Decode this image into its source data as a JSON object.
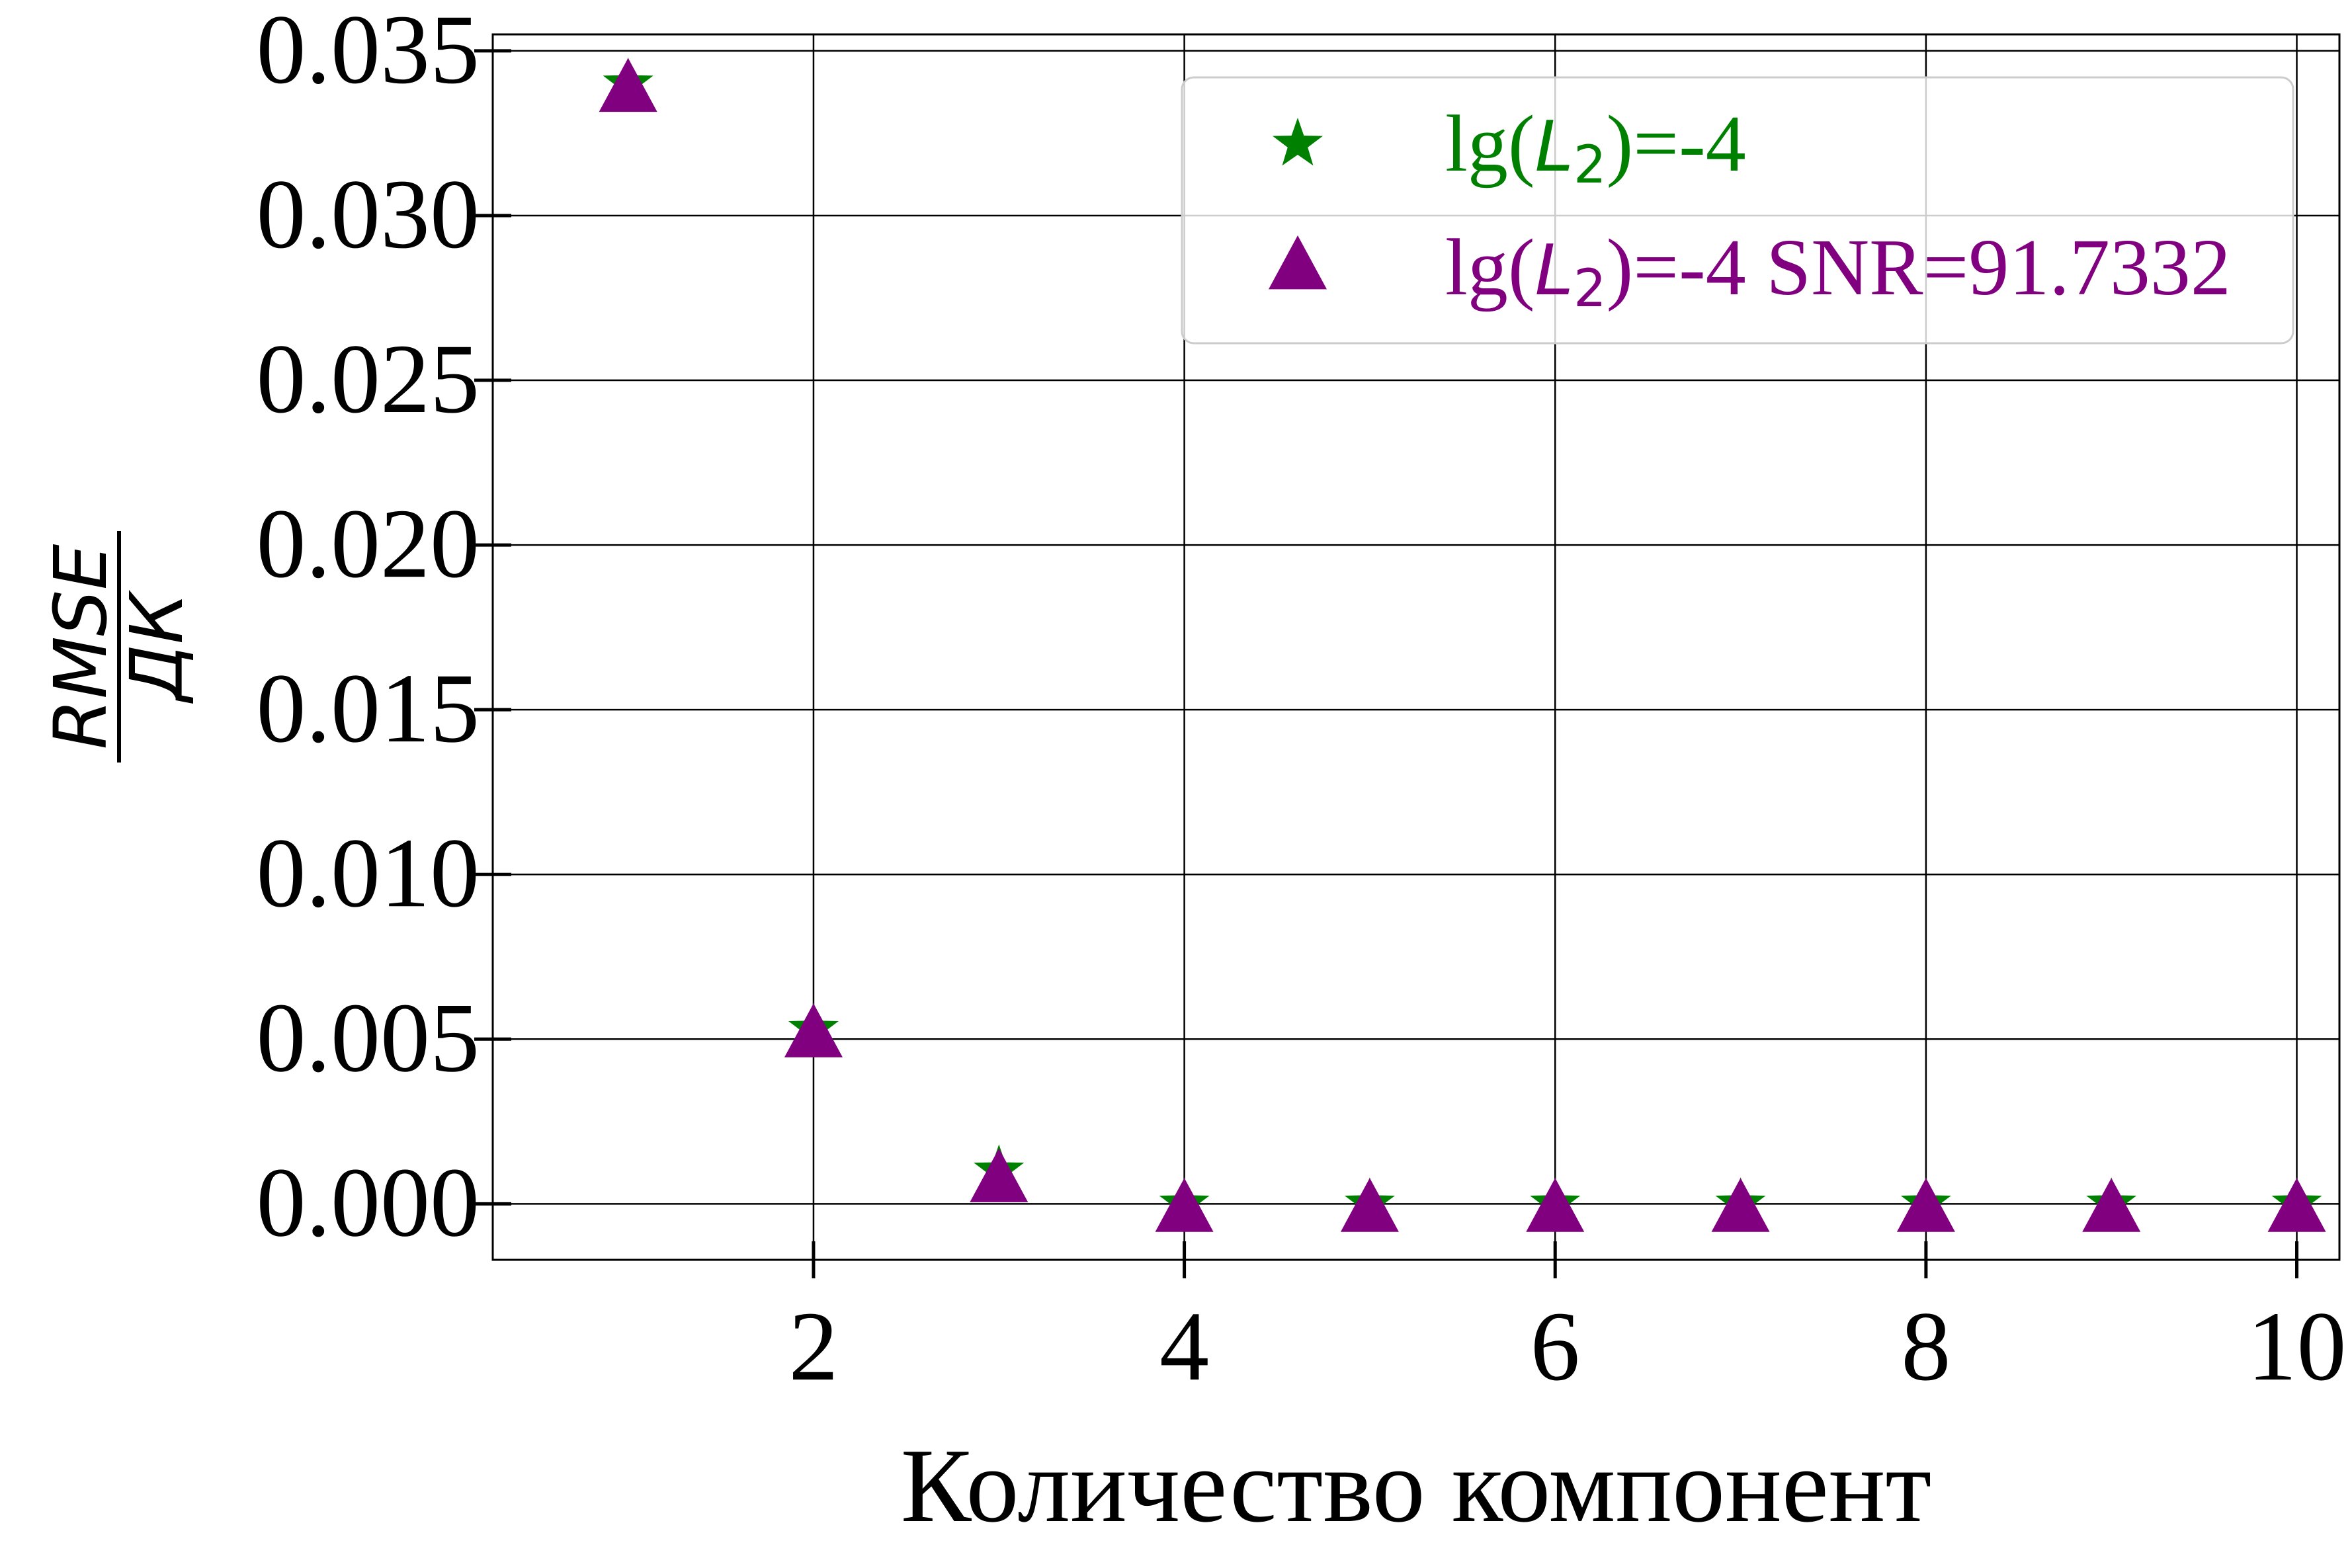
{
  "chart_data": {
    "type": "scatter",
    "title": "",
    "xlabel": "Количество компонент",
    "ylabel": {
      "numerator": "RMSE",
      "denominator": "ДК"
    },
    "xlim": [
      0.27,
      10.23
    ],
    "ylim": [
      -0.0017,
      0.0355
    ],
    "xticks": [
      2,
      4,
      6,
      8,
      10
    ],
    "xtick_labels": [
      "2",
      "4",
      "6",
      "8",
      "10"
    ],
    "yticks": [
      0.0,
      0.005,
      0.01,
      0.015,
      0.02,
      0.025,
      0.03,
      0.035
    ],
    "ytick_labels": [
      "0.000",
      "0.005",
      "0.010",
      "0.015",
      "0.020",
      "0.025",
      "0.030",
      "0.035"
    ],
    "grid": true,
    "legend_position": "top-right",
    "series": [
      {
        "name": "lg(L2)=-4",
        "label_parts": {
          "prefix": "lg(",
          "var": "L",
          "sub": "2",
          "suffix": ")=-4"
        },
        "marker": "star",
        "color": "#008000",
        "x": [
          1,
          2,
          3,
          4,
          5,
          6,
          7,
          8,
          9,
          10
        ],
        "y": [
          0.034,
          0.0053,
          0.001,
          0.0,
          0.0,
          0.0,
          0.0,
          0.0,
          0.0,
          0.0
        ]
      },
      {
        "name": "lg(L2)=-4 SNR=91.7332",
        "label_parts": {
          "prefix": "lg(",
          "var": "L",
          "sub": "2",
          "suffix": ")=-4 SNR=91.7332"
        },
        "marker": "triangle",
        "color": "#800080",
        "x": [
          1,
          2,
          3,
          4,
          5,
          6,
          7,
          8,
          9,
          10
        ],
        "y": [
          0.0339,
          0.0052,
          0.0008,
          -0.0001,
          -0.0001,
          -0.0001,
          -0.0001,
          -0.0001,
          -0.0001,
          -0.0001
        ]
      }
    ]
  }
}
